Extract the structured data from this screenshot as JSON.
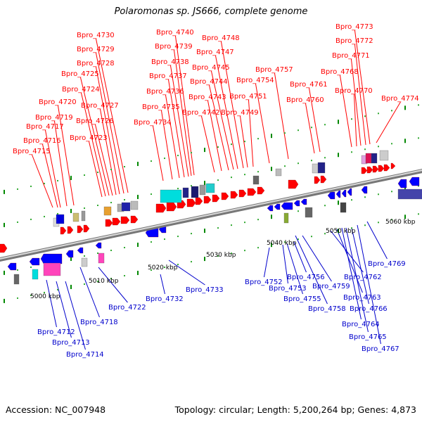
{
  "header": {
    "title": "Polaromonas sp. JS666, complete genome"
  },
  "footer": {
    "accession": "Accession: NC_007948",
    "summary": "Topology: circular; Length: 5,200,264 bp; Genes: 4,873"
  },
  "colors": {
    "forward_label": "#ff0000",
    "reverse_label": "#0000cc",
    "forward_feature": "#ff0000",
    "reverse_feature": "#0000ff",
    "backbone": "#888888",
    "tick": "#008800"
  },
  "scale": {
    "ticks": [
      "5000 kbp",
      "5010 kbp",
      "5020 kbp",
      "5030 kbp",
      "5040 kbp",
      "5050 kbp",
      "5060 kbp"
    ]
  },
  "labels": {
    "forward": [
      "Bpro_4715",
      "Bpro_4716",
      "Bpro_4717",
      "Bpro_4719",
      "Bpro_4720",
      "Bpro_4723",
      "Bpro_4724",
      "Bpro_4725",
      "Bpro_4726",
      "Bpro_4727",
      "Bpro_4728",
      "Bpro_4729",
      "Bpro_4730",
      "Bpro_4734",
      "Bpro_4735",
      "Bpro_4736",
      "Bpro_4737",
      "Bpro_4738",
      "Bpro_4739",
      "Bpro_4740",
      "Bpro_4742",
      "Bpro_4743",
      "Bpro_4744",
      "Bpro_4745",
      "Bpro_4747",
      "Bpro_4748",
      "Bpro_4749",
      "Bpro_4751",
      "Bpro_4754",
      "Bpro_4757",
      "Bpro_4760",
      "Bpro_4761",
      "Bpro_4768",
      "Bpro_4770",
      "Bpro_4771",
      "Bpro_4772",
      "Bpro_4773",
      "Bpro_4774"
    ],
    "reverse": [
      "Bpro_4712",
      "Bpro_4713",
      "Bpro_4714",
      "Bpro_4718",
      "Bpro_4722",
      "Bpro_4732",
      "Bpro_4733",
      "Bpro_4752",
      "Bpro_4753",
      "Bpro_4755",
      "Bpro_4756",
      "Bpro_4758",
      "Bpro_4759",
      "Bpro_4762",
      "Bpro_4763",
      "Bpro_4764",
      "Bpro_4765",
      "Bpro_4766",
      "Bpro_4767",
      "Bpro_4769"
    ]
  }
}
